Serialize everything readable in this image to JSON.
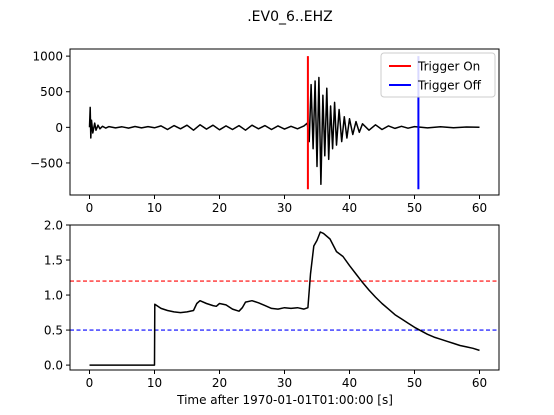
{
  "figure": {
    "title": ".EV0_6..EHZ",
    "xlabel": "Time after 1970-01-01T01:00:00 [s]"
  },
  "chart_data": [
    {
      "type": "line",
      "title": ".EV0_6..EHZ",
      "xlabel": "",
      "ylabel": "",
      "xlim": [
        -3,
        63
      ],
      "ylim": [
        -950,
        1100
      ],
      "x_ticks": [
        0,
        10,
        20,
        30,
        40,
        50,
        60
      ],
      "y_ticks": [
        1000,
        500,
        0,
        -500
      ],
      "x_tick_labels": [
        "0",
        "10",
        "20",
        "30",
        "40",
        "50",
        "60"
      ],
      "y_tick_labels": [
        "1000",
        "500",
        "0",
        "−500"
      ],
      "series": [
        {
          "name": "",
          "color": "#000000",
          "x": [
            0,
            0.1,
            0.2,
            0.3,
            0.5,
            0.8,
            1.0,
            1.3,
            1.6,
            2.0,
            2.5,
            3,
            4,
            5,
            6,
            7,
            8,
            9,
            10,
            11,
            12,
            13,
            14,
            15,
            16,
            17,
            18,
            19,
            20,
            21,
            22,
            23,
            24,
            25,
            26,
            27,
            28,
            29,
            30,
            31,
            32,
            33,
            33.5,
            33.8,
            34.1,
            34.4,
            34.7,
            35.0,
            35.3,
            35.6,
            35.9,
            36.2,
            36.5,
            36.8,
            37.1,
            37.4,
            37.7,
            38.0,
            38.4,
            38.8,
            39.2,
            39.6,
            40.0,
            40.5,
            41,
            41.5,
            42,
            43,
            44,
            45,
            46,
            47,
            48,
            49,
            50,
            52,
            54,
            56,
            58,
            60
          ],
          "y": [
            0,
            280,
            -150,
            100,
            -80,
            60,
            -40,
            30,
            -20,
            15,
            -10,
            10,
            -8,
            8,
            -10,
            12,
            -8,
            10,
            -6,
            20,
            -30,
            25,
            -20,
            30,
            -40,
            35,
            -25,
            30,
            -35,
            20,
            -30,
            25,
            -40,
            30,
            -20,
            25,
            -30,
            20,
            -25,
            15,
            -20,
            20,
            60,
            -200,
            600,
            -300,
            650,
            -550,
            700,
            -800,
            450,
            -400,
            550,
            -450,
            300,
            -300,
            350,
            -250,
            250,
            -200,
            150,
            -150,
            120,
            -100,
            80,
            -70,
            50,
            -40,
            35,
            -30,
            20,
            -15,
            15,
            -12,
            10,
            -8,
            8,
            -6,
            5,
            0
          ]
        },
        {
          "name": "Trigger On",
          "color": "#ff0000",
          "x": [
            33.6,
            33.6
          ],
          "y": [
            -870,
            1000
          ]
        },
        {
          "name": "Trigger Off",
          "color": "#0000ff",
          "x": [
            50.6,
            50.6
          ],
          "y": [
            -870,
            1000
          ]
        }
      ],
      "legend": {
        "position": "top-right",
        "entries": [
          {
            "label": "Trigger On",
            "color": "#ff0000"
          },
          {
            "label": "Trigger Off",
            "color": "#0000ff"
          }
        ]
      },
      "grid": false
    },
    {
      "type": "line",
      "title": "",
      "xlabel": "Time after 1970-01-01T01:00:00 [s]",
      "ylabel": "",
      "xlim": [
        -3,
        63
      ],
      "ylim": [
        -0.07,
        2.0
      ],
      "x_ticks": [
        0,
        10,
        20,
        30,
        40,
        50,
        60
      ],
      "y_ticks": [
        2.0,
        1.5,
        1.0,
        0.5,
        0.0
      ],
      "x_tick_labels": [
        "0",
        "10",
        "20",
        "30",
        "40",
        "50",
        "60"
      ],
      "y_tick_labels": [
        "2.0",
        "1.5",
        "1.0",
        "0.5",
        "0.0"
      ],
      "series": [
        {
          "name": "",
          "color": "#000000",
          "x": [
            0,
            10,
            10.05,
            11,
            12,
            13,
            14,
            15,
            16,
            16.5,
            17,
            18,
            19,
            19.5,
            20,
            21,
            22,
            23,
            23.5,
            24,
            25,
            26,
            27,
            28,
            29,
            30,
            31,
            32,
            33,
            33.6,
            34.0,
            34.5,
            35.0,
            35.5,
            36,
            37,
            38,
            39,
            40,
            41,
            42,
            43,
            44,
            45,
            46,
            47,
            48,
            49,
            50,
            51,
            52,
            53,
            54,
            55,
            56,
            57,
            58,
            59,
            60
          ],
          "y": [
            0,
            0,
            0.87,
            0.81,
            0.78,
            0.76,
            0.75,
            0.76,
            0.78,
            0.88,
            0.92,
            0.88,
            0.85,
            0.84,
            0.88,
            0.86,
            0.8,
            0.77,
            0.82,
            0.9,
            0.92,
            0.89,
            0.85,
            0.81,
            0.8,
            0.82,
            0.81,
            0.82,
            0.8,
            0.82,
            1.3,
            1.7,
            1.78,
            1.9,
            1.88,
            1.8,
            1.62,
            1.55,
            1.42,
            1.3,
            1.18,
            1.07,
            0.97,
            0.88,
            0.8,
            0.72,
            0.66,
            0.6,
            0.54,
            0.49,
            0.44,
            0.4,
            0.37,
            0.34,
            0.31,
            0.28,
            0.26,
            0.24,
            0.21
          ]
        }
      ],
      "hlines": [
        {
          "y": 1.2,
          "color": "#ff0000",
          "style": "dashed"
        },
        {
          "y": 0.5,
          "color": "#0000ff",
          "style": "dashed"
        }
      ],
      "grid": false
    }
  ]
}
